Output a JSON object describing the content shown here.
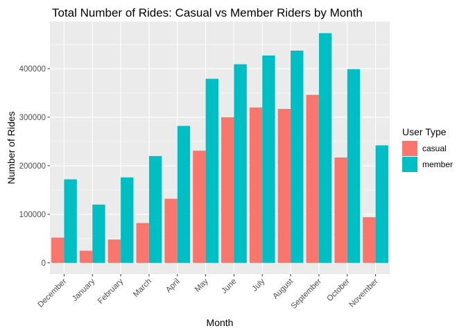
{
  "chart_data": {
    "type": "bar",
    "title": "Total Number of Rides: Casual vs Member Riders by Month",
    "xlabel": "Month",
    "ylabel": "Number of Rides",
    "categories": [
      "December",
      "January",
      "February",
      "March",
      "April",
      "May",
      "June",
      "July",
      "August",
      "September",
      "October",
      "November"
    ],
    "series": [
      {
        "name": "casual",
        "color": "#F8766D",
        "values": [
          52000,
          25000,
          48000,
          82000,
          132000,
          231000,
          300000,
          320000,
          317000,
          346000,
          217000,
          94000
        ]
      },
      {
        "name": "member",
        "color": "#00BFC4",
        "values": [
          172000,
          120000,
          176000,
          220000,
          282000,
          379000,
          409000,
          427000,
          437000,
          473000,
          399000,
          242000
        ]
      }
    ],
    "ylim": [
      -23000,
      497000
    ],
    "yticks": [
      0,
      100000,
      200000,
      300000,
      400000
    ],
    "ytick_labels": [
      "0",
      "100000",
      "200000",
      "300000",
      "400000"
    ],
    "grid": true,
    "legend": {
      "title": "User Type",
      "placement": "right",
      "entries": [
        "casual",
        "member"
      ]
    },
    "panel_background": "#EBEBEB",
    "grid_color": "#FFFFFF"
  }
}
